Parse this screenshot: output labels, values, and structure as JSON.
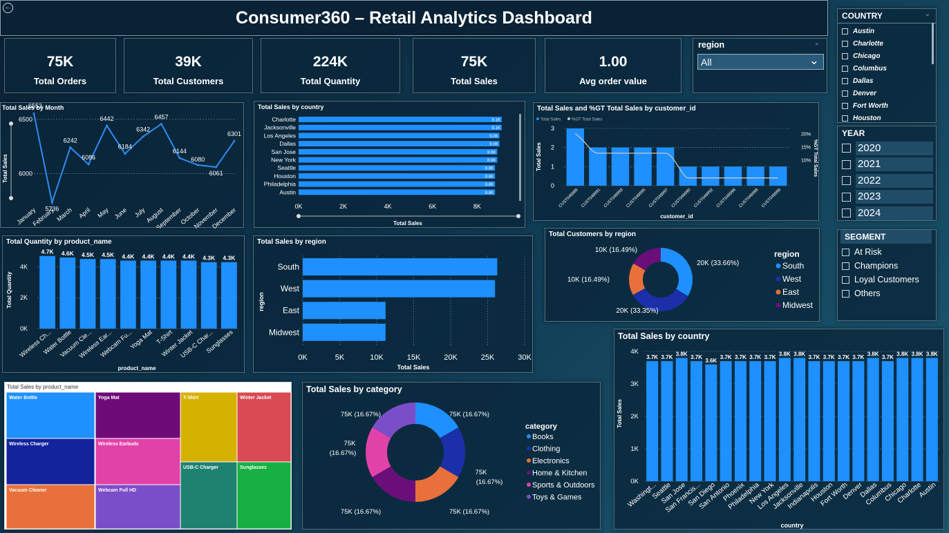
{
  "header": {
    "title": "Consumer360 – Retail Analytics Dashboard",
    "back_icon": "back-arrow-icon"
  },
  "kpis": [
    {
      "value": "75K",
      "label": "Total Orders"
    },
    {
      "value": "39K",
      "label": "Total Customers"
    },
    {
      "value": "224K",
      "label": "Total Quantity"
    },
    {
      "value": "75K",
      "label": "Total Sales"
    },
    {
      "value": "1.00",
      "label": "Avg order value"
    }
  ],
  "region_slicer": {
    "title": "region",
    "selected": "All"
  },
  "country_slicer": {
    "title": "COUNTRY",
    "items": [
      "Austin",
      "Charlotte",
      "Chicago",
      "Columbus",
      "Dallas",
      "Denver",
      "Fort Worth",
      "Houston"
    ]
  },
  "year_slicer": {
    "title": "YEAR",
    "items": [
      "2020",
      "2021",
      "2022",
      "2023",
      "2024"
    ]
  },
  "segment_slicer": {
    "title": "SEGMENT",
    "items": [
      "At Risk",
      "Champions",
      "Loyal Customers",
      "Others"
    ]
  },
  "chart_data": [
    {
      "id": "sales_by_month",
      "type": "line",
      "title": "Total Sales by Month",
      "ylabel": "Total Sales",
      "y_ticks": [
        "6500",
        "6000"
      ],
      "ylim": [
        5700,
        6600
      ],
      "categories": [
        "January",
        "February",
        "March",
        "April",
        "May",
        "June",
        "July",
        "August",
        "September",
        "October",
        "November",
        "December"
      ],
      "values": [
        6553,
        5736,
        6242,
        6086,
        6442,
        6184,
        6342,
        6457,
        6144,
        6080,
        6061,
        6301
      ],
      "labels": [
        "6553",
        "5736",
        "6242",
        "6086",
        "6442",
        "6184",
        "6342",
        "6457",
        "6144",
        "6080",
        "6061",
        "6301"
      ],
      "color": "#2e8cf0"
    },
    {
      "id": "sales_by_country_top",
      "type": "bar",
      "title": "Total Sales by country",
      "xlabel": "Total Sales",
      "categories": [
        "Charlotte",
        "Jacksonville",
        "Los Angeles",
        "Dallas",
        "San Jose",
        "New York",
        "Seattle",
        "Houston",
        "Philadelphia",
        "Austin"
      ],
      "values": [
        9100,
        9100,
        9000,
        9000,
        8900,
        8900,
        8800,
        8800,
        8800,
        8800
      ],
      "labels": [
        "9.1K",
        "9.1K",
        "9.0K",
        "9.0K",
        "8.9K",
        "8.9K",
        "8.8K",
        "8.8K",
        "8.8K",
        "8.8K"
      ],
      "x_ticks": [
        "0K",
        "2K",
        "4K",
        "6K",
        "8K"
      ],
      "xlim": [
        0,
        9600
      ],
      "color": "#1e90ff"
    },
    {
      "id": "sales_by_customer",
      "type": "bar",
      "title": "Total Sales and %GT Total Sales by customer_id",
      "legend": [
        "Total Sales",
        "%GT Total Sales"
      ],
      "ylabel": "Total Sales",
      "y2label": "%GT Total Sales",
      "xlabel": "customer_id",
      "categories": [
        "CUST049989",
        "CUST049991",
        "CUST049993",
        "CUST049995",
        "CUST049997",
        "CUST049990",
        "CUST049992",
        "CUST049996",
        "CUST049998",
        "CUST049999"
      ],
      "values": [
        3,
        2,
        2,
        2,
        2,
        1,
        1,
        1,
        1,
        1
      ],
      "pct": [
        20,
        12.5,
        12.5,
        12.5,
        12.5,
        3,
        3,
        3,
        3,
        3
      ],
      "y_ticks": [
        "0",
        "1",
        "2",
        "3"
      ],
      "y2_ticks": [
        "10%",
        "15%",
        "20%"
      ],
      "ylim": [
        0,
        3
      ],
      "color": "#1e90ff",
      "line_color": "#c8c8c8"
    },
    {
      "id": "quantity_by_product",
      "type": "bar",
      "title": "Total Quantity by product_name",
      "ylabel": "Total Quantity",
      "xlabel": "product_name",
      "categories": [
        "Wireless Ch...",
        "Water Bottle",
        "Vacuum Cle...",
        "Wireless Ear...",
        "Webcam Fu...",
        "Yoga Mat",
        "T-Shirt",
        "Winter Jacket",
        "USB-C Char...",
        "Sunglasses"
      ],
      "values": [
        4700,
        4600,
        4500,
        4500,
        4400,
        4400,
        4400,
        4400,
        4300,
        4300
      ],
      "labels": [
        "4.7K",
        "4.6K",
        "4.5K",
        "4.5K",
        "4.4K",
        "4.4K",
        "4.4K",
        "4.4K",
        "4.3K",
        "4.3K"
      ],
      "y_ticks": [
        "0K",
        "2K",
        "4K"
      ],
      "ylim": [
        0,
        5000
      ],
      "color": "#1e90ff"
    },
    {
      "id": "sales_by_region",
      "type": "bar",
      "title": "Total Sales by region",
      "ylabel": "region",
      "xlabel": "Total Sales",
      "categories": [
        "South",
        "West",
        "East",
        "Midwest"
      ],
      "values": [
        26300,
        26000,
        11200,
        11200
      ],
      "x_ticks": [
        "0K",
        "5K",
        "10K",
        "15K",
        "20K",
        "25K",
        "30K"
      ],
      "xlim": [
        0,
        30000
      ],
      "color": "#1e90ff"
    },
    {
      "id": "customers_by_region",
      "type": "pie",
      "title": "Total Customers by region",
      "legend_title": "region",
      "categories": [
        "South",
        "West",
        "East",
        "Midwest"
      ],
      "values": [
        33.66,
        33.35,
        16.49,
        16.49
      ],
      "labels": [
        "20K (33.66%)",
        "20K (33.35%)",
        "10K (16.49%)",
        "10K (16.49%)"
      ],
      "colors": [
        "#1e90ff",
        "#1a2fa8",
        "#e8703a",
        "#6a0f7a"
      ]
    },
    {
      "id": "sales_by_product_treemap",
      "type": "heatmap",
      "title": "Total Sales by product_name",
      "categories": [
        "Water Bottle",
        "Yoga Mat",
        "T-Shirt",
        "Winter Jacket",
        "Wireless Charger",
        "Wireless Earbuds",
        "USB-C Charger",
        "Sunglasses",
        "Vacuum Cleaner",
        "Webcam Full HD"
      ],
      "colors": [
        "#1e90ff",
        "#6e0b78",
        "#d6b200",
        "#d94a52",
        "#13239c",
        "#e142a8",
        "#1f8270",
        "#16b043",
        "#e8703a",
        "#7b4ec9"
      ]
    },
    {
      "id": "sales_by_category",
      "type": "pie",
      "title": "Total Sales by category",
      "legend_title": "category",
      "categories": [
        "Books",
        "Clothing",
        "Electronics",
        "Home & Kitchen",
        "Sports & Outdoors",
        "Toys & Games"
      ],
      "values": [
        16.67,
        16.67,
        16.67,
        16.67,
        16.67,
        16.67
      ],
      "labels": [
        "75K (16.67%)",
        "75K (16.67%)",
        "75K (16.67%)",
        "75K (16.67%)",
        "75K (16.67%)",
        "75K (16.67%)"
      ],
      "colors": [
        "#1e90ff",
        "#1a2fa8",
        "#e8703a",
        "#6a0f7a",
        "#e142a8",
        "#7b4ec9"
      ]
    },
    {
      "id": "sales_by_country_all",
      "type": "bar",
      "title": "Total Sales by country",
      "ylabel": "Total Sales",
      "xlabel": "country",
      "categories": [
        "Washingt...",
        "Seattle",
        "San Jose",
        "San Francis...",
        "San Diego",
        "San Antonio",
        "Phoenix",
        "Philadelphia",
        "New York",
        "Los Angeles",
        "Jacksonville",
        "Indianapolis",
        "Houston",
        "Fort Worth",
        "Denver",
        "Dallas",
        "Columbus",
        "Chicago",
        "Charlotte",
        "Austin"
      ],
      "values": [
        3700,
        3700,
        3800,
        3700,
        3600,
        3700,
        3700,
        3700,
        3700,
        3800,
        3800,
        3700,
        3700,
        3700,
        3700,
        3800,
        3700,
        3800,
        3800,
        3800
      ],
      "labels": [
        "3.7K",
        "3.7K",
        "3.8K",
        "3.7K",
        "3.6K",
        "3.7K",
        "3.7K",
        "3.7K",
        "3.7K",
        "3.8K",
        "3.8K",
        "3.7K",
        "3.7K",
        "3.7K",
        "3.7K",
        "3.8K",
        "3.7K",
        "3.8K",
        "3.8K",
        "3.8K"
      ],
      "y_ticks": [
        "0K",
        "1K",
        "2K",
        "3K",
        "4K"
      ],
      "ylim": [
        0,
        4000
      ],
      "color": "#1e90ff"
    }
  ]
}
